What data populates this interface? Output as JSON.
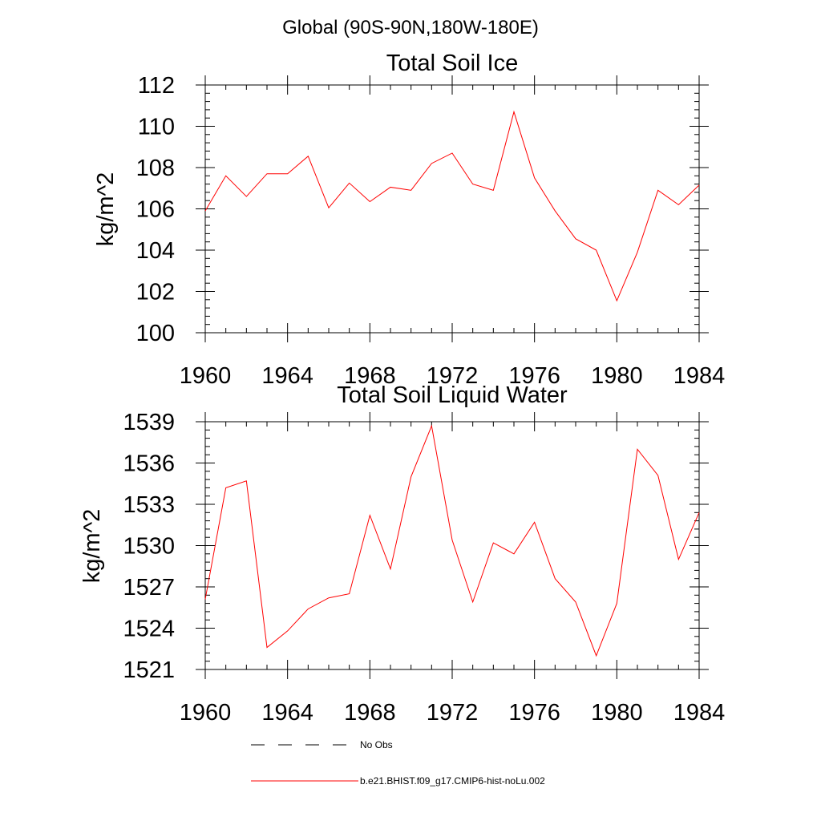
{
  "page_title": "Global (90S-90N,180W-180E)",
  "legend": {
    "entries": [
      {
        "label": "No Obs",
        "color": "#000000",
        "dash": "dashed"
      },
      {
        "label": "b.e21.BHIST.f09_g17.CMIP6-hist-noLu.002",
        "color": "#ff0000",
        "dash": "solid"
      }
    ],
    "placement": "bottom"
  },
  "chart_data": [
    {
      "type": "line",
      "title": "Total Soil Ice",
      "xlabel": "",
      "ylabel": "kg/m^2",
      "xlim": [
        1960,
        1984
      ],
      "ylim": [
        100,
        112
      ],
      "xticks": [
        1960,
        1964,
        1968,
        1972,
        1976,
        1980,
        1984
      ],
      "yticks": [
        100,
        102,
        104,
        106,
        108,
        110,
        112
      ],
      "grid": false,
      "series": [
        {
          "name": "b.e21.BHIST.f09_g17.CMIP6-hist-noLu.002",
          "color": "#ff0000",
          "x": [
            1960,
            1961,
            1962,
            1963,
            1964,
            1965,
            1966,
            1967,
            1968,
            1969,
            1970,
            1971,
            1972,
            1973,
            1974,
            1975,
            1976,
            1977,
            1978,
            1979,
            1980,
            1981,
            1982,
            1983,
            1984
          ],
          "y": [
            105.9,
            107.6,
            106.6,
            107.7,
            107.7,
            108.55,
            106.05,
            107.25,
            106.35,
            107.05,
            106.9,
            108.2,
            108.7,
            107.2,
            106.9,
            110.7,
            107.5,
            105.9,
            104.55,
            104.0,
            101.55,
            103.9,
            106.9,
            106.2,
            107.15
          ]
        }
      ]
    },
    {
      "type": "line",
      "title": "Total Soil Liquid Water",
      "xlabel": "",
      "ylabel": "kg/m^2",
      "xlim": [
        1960,
        1984
      ],
      "ylim": [
        1521,
        1539
      ],
      "xticks": [
        1960,
        1964,
        1968,
        1972,
        1976,
        1980,
        1984
      ],
      "yticks": [
        1521,
        1524,
        1527,
        1530,
        1533,
        1536,
        1539
      ],
      "grid": false,
      "series": [
        {
          "name": "b.e21.BHIST.f09_g17.CMIP6-hist-noLu.002",
          "color": "#ff0000",
          "x": [
            1960,
            1961,
            1962,
            1963,
            1964,
            1965,
            1966,
            1967,
            1968,
            1969,
            1970,
            1971,
            1972,
            1973,
            1974,
            1975,
            1976,
            1977,
            1978,
            1979,
            1980,
            1981,
            1982,
            1983,
            1984
          ],
          "y": [
            1526.1,
            1534.2,
            1534.7,
            1522.6,
            1523.8,
            1525.4,
            1526.2,
            1526.5,
            1532.2,
            1528.3,
            1535.0,
            1538.7,
            1530.4,
            1525.9,
            1530.2,
            1529.4,
            1531.7,
            1527.6,
            1525.9,
            1522.0,
            1525.8,
            1537.0,
            1535.1,
            1529.0,
            1532.4
          ]
        }
      ]
    }
  ]
}
